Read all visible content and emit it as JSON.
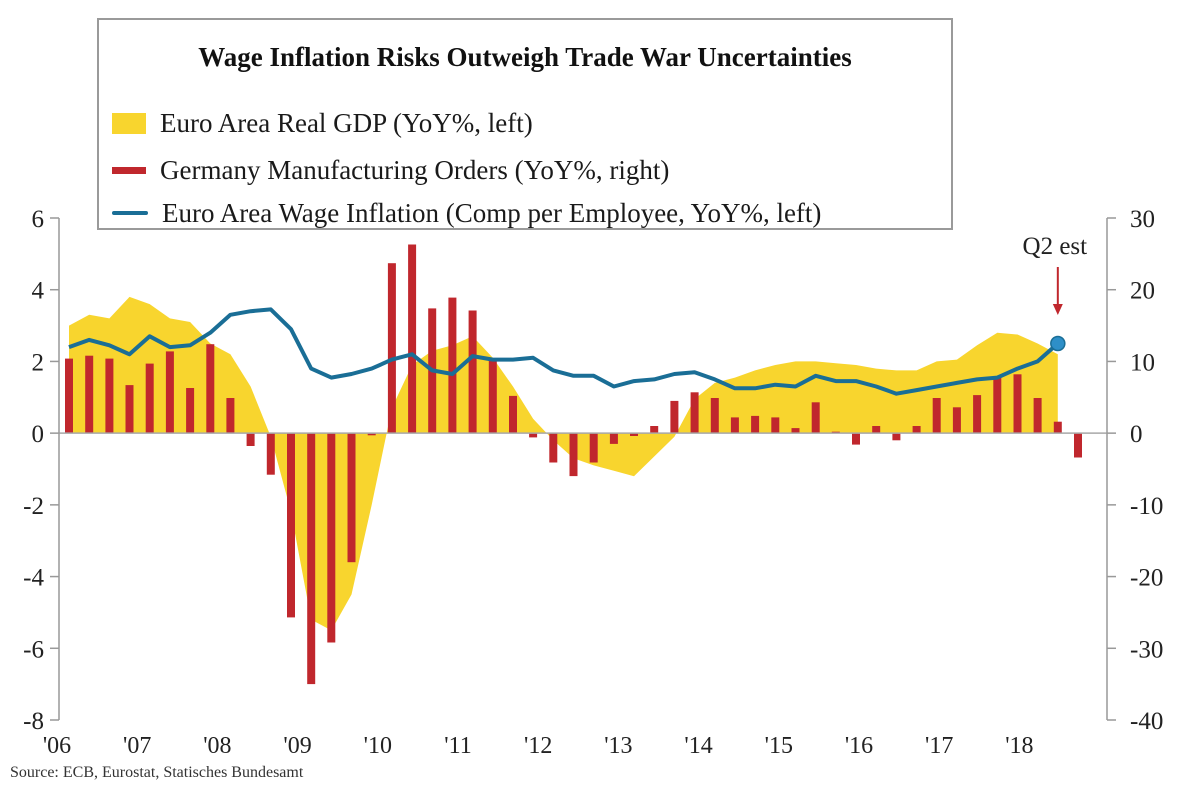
{
  "chart_data": {
    "type": "bar+area+line",
    "title": "Wage Inflation Risks Outweigh Trade War Uncertainties",
    "source": "Source:  ECB, Eurostat, Statisches Bundesamt",
    "annotation": {
      "text": "Q2 est",
      "target_series": "Euro Area Wage Inflation (Comp per Employee, YoY%, left)",
      "target_period": "2018 Q2"
    },
    "x_axis": {
      "frequency": "quarterly",
      "start": "2006 Q1",
      "tick_labels": [
        "'06",
        "'07",
        "'08",
        "'09",
        "'10",
        "'11",
        "'12",
        "'13",
        "'14",
        "'15",
        "'16",
        "'17",
        "'18"
      ]
    },
    "left_axis": {
      "ylim": [
        -8,
        6
      ],
      "ticks": [
        6,
        4,
        2,
        0,
        -2,
        -4,
        -6,
        -8
      ],
      "tick_labels": [
        "6",
        "4",
        "2",
        "0",
        "-2",
        "-4",
        "-6",
        "-8"
      ]
    },
    "right_axis": {
      "ylim": [
        -40,
        30
      ],
      "ticks": [
        30,
        20,
        10,
        0,
        -10,
        -20,
        -30,
        -40
      ],
      "tick_labels": [
        "30",
        "20",
        "10",
        "0",
        "-10",
        "-20",
        "-30",
        "-40"
      ]
    },
    "grid": false,
    "legend_position": "top-inside-boxed",
    "series": [
      {
        "name": "Euro Area Real GDP (YoY%, left)",
        "kind": "area",
        "axis": "left",
        "color": "#F8D52E",
        "values": [
          3.0,
          3.3,
          3.2,
          3.8,
          3.6,
          3.2,
          3.1,
          2.5,
          2.2,
          1.3,
          -0.1,
          -2.2,
          -5.2,
          -5.5,
          -4.5,
          -2.0,
          0.7,
          1.9,
          2.3,
          2.45,
          2.7,
          2.1,
          1.3,
          0.4,
          -0.2,
          -0.7,
          -0.9,
          -1.05,
          -1.2,
          -0.65,
          -0.1,
          0.95,
          1.4,
          1.55,
          1.75,
          1.9,
          2.0,
          2.0,
          1.95,
          1.9,
          1.8,
          1.75,
          1.75,
          2.0,
          2.05,
          2.45,
          2.8,
          2.75,
          2.5,
          2.2
        ]
      },
      {
        "name": "Germany Manufacturing Orders (YoY%, right)",
        "kind": "bar",
        "axis": "right",
        "color": "#C0272D",
        "values": [
          10.4,
          10.8,
          10.4,
          6.7,
          9.7,
          11.4,
          6.3,
          12.4,
          4.9,
          -1.8,
          -5.8,
          -25.7,
          -35.0,
          -29.2,
          -18.0,
          -0.3,
          23.7,
          26.3,
          17.4,
          18.9,
          17.1,
          10.4,
          5.2,
          -0.6,
          -4.1,
          -6.0,
          -4.1,
          -1.5,
          -0.4,
          1.0,
          4.5,
          5.7,
          4.9,
          2.2,
          2.4,
          2.2,
          0.7,
          4.3,
          0.2,
          -1.6,
          1.0,
          -1.0,
          1.0,
          4.9,
          3.6,
          5.3,
          7.7,
          8.2,
          4.9,
          1.6,
          -3.4
        ]
      },
      {
        "name": "Euro Area Wage Inflation (Comp per Employee, YoY%, left)",
        "kind": "line",
        "axis": "left",
        "color": "#1A6E96",
        "marker_last": "#2E8FC8",
        "values": [
          2.4,
          2.6,
          2.45,
          2.2,
          2.7,
          2.4,
          2.45,
          2.8,
          3.3,
          3.4,
          3.45,
          2.9,
          1.8,
          1.55,
          1.65,
          1.8,
          2.05,
          2.2,
          1.75,
          1.65,
          2.15,
          2.05,
          2.05,
          2.1,
          1.75,
          1.6,
          1.6,
          1.3,
          1.45,
          1.5,
          1.65,
          1.7,
          1.5,
          1.25,
          1.25,
          1.35,
          1.3,
          1.6,
          1.45,
          1.45,
          1.3,
          1.1,
          1.2,
          1.3,
          1.4,
          1.5,
          1.55,
          1.8,
          2.0,
          2.5
        ]
      }
    ]
  }
}
